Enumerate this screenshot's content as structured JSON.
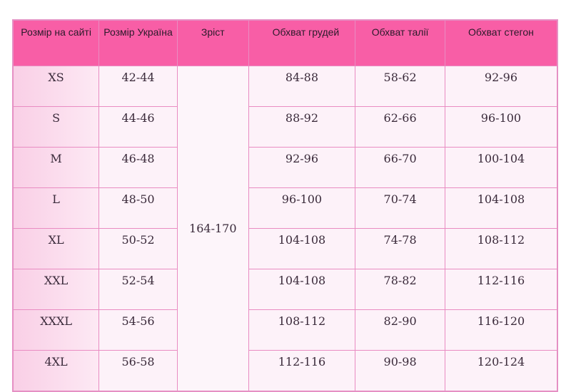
{
  "headers": [
    "Розмір на сайті",
    "Розмір Україна",
    "Зріст",
    "Обхват грудей",
    "Обхват талії",
    "Обхват стегон"
  ],
  "height": "164-170",
  "rows": [
    [
      "XS",
      "42-44",
      "84-88",
      "58-62",
      "92-96"
    ],
    [
      "S",
      "44-46",
      "88-92",
      "62-66",
      "96-100"
    ],
    [
      "M",
      "46-48",
      "92-96",
      "66-70",
      "100-104"
    ],
    [
      "L",
      "48-50",
      "96-100",
      "70-74",
      "104-108"
    ],
    [
      "XL",
      "50-52",
      "104-108",
      "74-78",
      "108-112"
    ],
    [
      "XXL",
      "52-54",
      "104-108",
      "78-82",
      "112-116"
    ],
    [
      "XXXL",
      "54-56",
      "108-112",
      "82-90",
      "116-120"
    ],
    [
      "4XL",
      "56-58",
      "112-116",
      "90-98",
      "120-124"
    ]
  ],
  "colors": {
    "header": "#f85ea6",
    "border": "#e98cc2"
  }
}
